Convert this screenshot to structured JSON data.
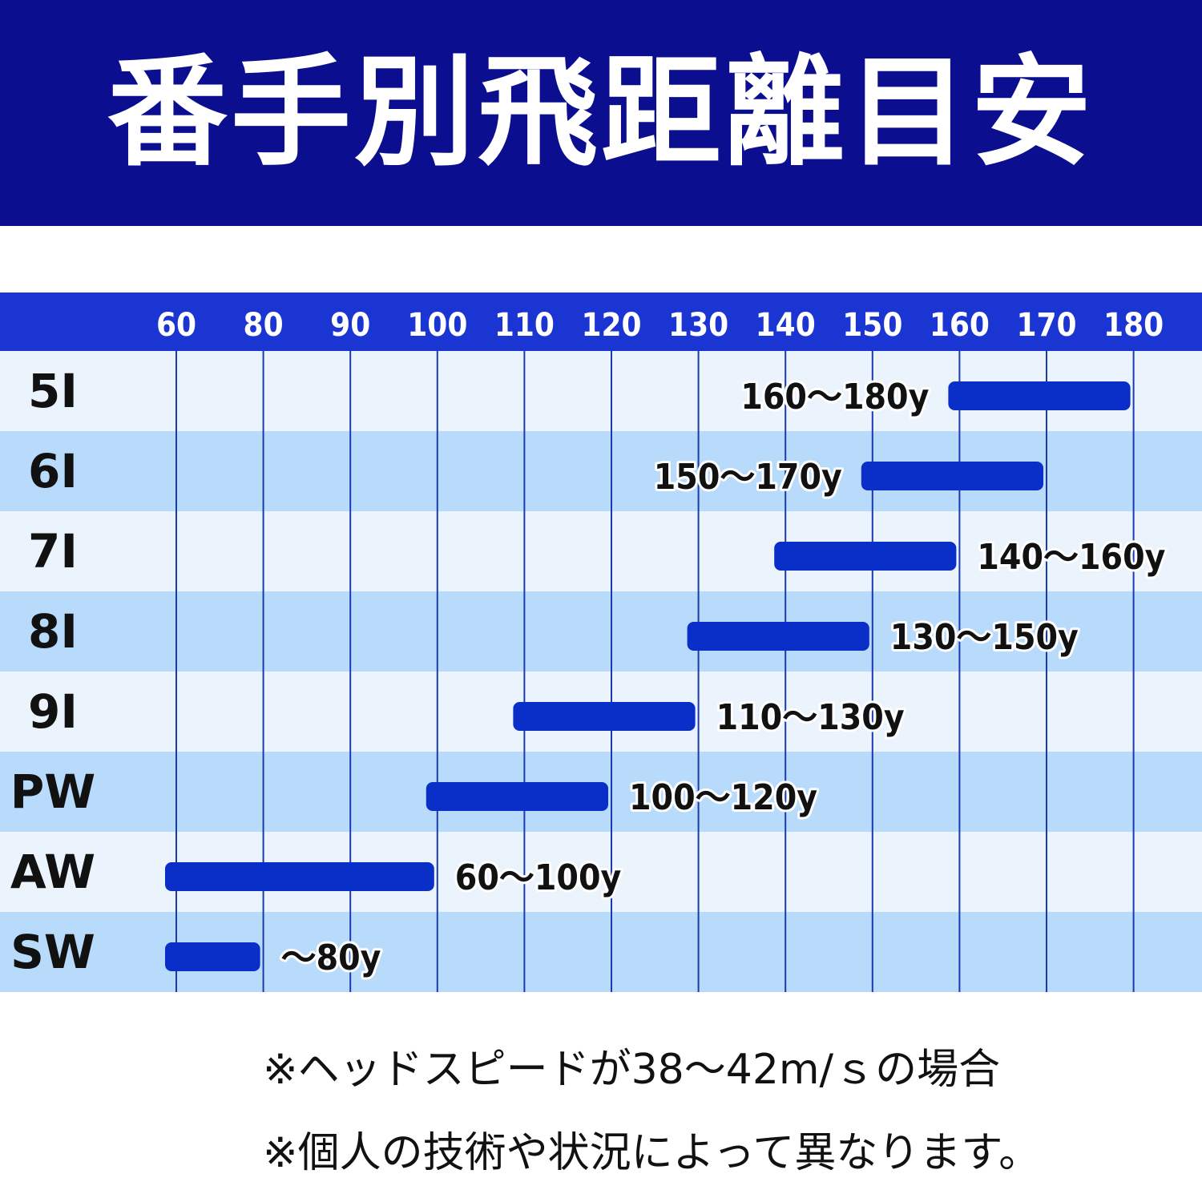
{
  "title": "番手別飛距離目安",
  "colors": {
    "banner": "#0b0f8f",
    "header": "#1a35d2",
    "bar": "#0a2fc8",
    "row_light": "#ebf4fd",
    "row_dark": "#b8dbfb",
    "grid": "#1b3ab0"
  },
  "chart_data": {
    "type": "bar",
    "orientation": "horizontal-range",
    "x_ticks": [
      60,
      80,
      90,
      100,
      110,
      120,
      130,
      140,
      150,
      160,
      170,
      180
    ],
    "categories": [
      "5I",
      "6I",
      "7I",
      "8I",
      "9I",
      "PW",
      "AW",
      "SW"
    ],
    "ranges": [
      {
        "club": "5I",
        "start": 160,
        "end": 180,
        "label": "160〜180y",
        "label_side": "left"
      },
      {
        "club": "6I",
        "start": 150,
        "end": 170,
        "label": "150〜170y",
        "label_side": "left"
      },
      {
        "club": "7I",
        "start": 140,
        "end": 160,
        "label": "140〜160y",
        "label_side": "right"
      },
      {
        "club": "8I",
        "start": 130,
        "end": 150,
        "label": "130〜150y",
        "label_side": "right"
      },
      {
        "club": "9I",
        "start": 110,
        "end": 130,
        "label": "110〜130y",
        "label_side": "right"
      },
      {
        "club": "PW",
        "start": 100,
        "end": 120,
        "label": "100〜120y",
        "label_side": "right"
      },
      {
        "club": "AW",
        "start": 60,
        "end": 100,
        "label": "60〜100y",
        "label_side": "right"
      },
      {
        "club": "SW",
        "start": 60,
        "end": 80,
        "label": "〜80y",
        "label_side": "right"
      }
    ]
  },
  "notes": [
    "※ヘッドスピードが38〜42m/ｓの場合",
    "※個人の技術や状況によって異なります。"
  ]
}
